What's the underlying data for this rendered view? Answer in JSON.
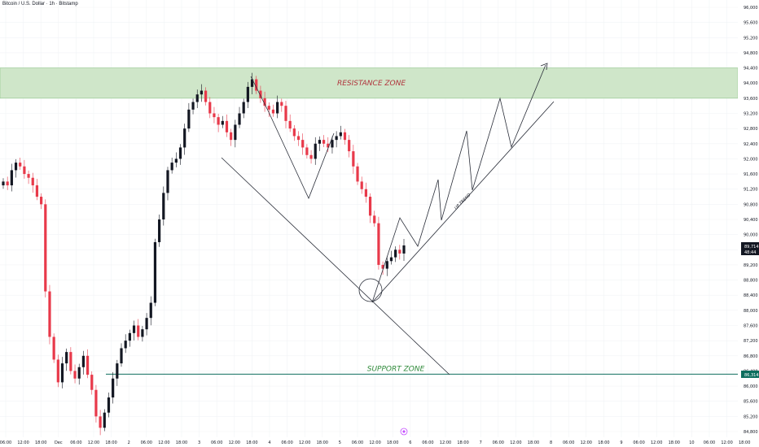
{
  "header": {
    "title": "Bitcoin / U.S. Dollar · 1h · Bitstamp"
  },
  "colors": {
    "up": "#131722",
    "down": "#e8394a",
    "resistance_fill": "#cfe6c9",
    "resistance_stroke": "#8fc48a",
    "resistance_text": "#b0343c",
    "support_line": "#0e6e5e",
    "support_text": "#2f8a3a",
    "grid": "#f1f3f6",
    "lines": "#2a2e39",
    "price_badge": "#131722",
    "support_badge": "#0e6e5e"
  },
  "labels": {
    "resistance": "RESISTANCE ZONE",
    "support": "SUPPORT ZONE",
    "uptrend": "UP TREND"
  },
  "badges": {
    "current_price": "89,714",
    "countdown": "48:44",
    "support_price": "86,314"
  },
  "chart_data": {
    "type": "candlestick",
    "symbol": "Bitcoin / U.S. Dollar",
    "interval": "1h",
    "exchange": "Bitstamp",
    "ylim": [
      84400,
      96000
    ],
    "y_ticks": [
      96000,
      95600,
      95200,
      94800,
      94400,
      94000,
      93600,
      93200,
      92800,
      92400,
      92000,
      91600,
      91200,
      90800,
      90400,
      90000,
      89600,
      89200,
      88800,
      88400,
      88000,
      87600,
      87200,
      86800,
      86400,
      86000,
      85600,
      85200,
      84800
    ],
    "x_labels": [
      "06:00",
      "12:00",
      "18:00",
      "Dec",
      "06:00",
      "12:00",
      "18:00",
      "2",
      "06:00",
      "12:00",
      "18:00",
      "3",
      "06:00",
      "12:00",
      "18:00",
      "4",
      "06:00",
      "12:00",
      "18:00",
      "5",
      "06:00",
      "12:00",
      "18:00",
      "6",
      "06:00",
      "12:00",
      "18:00",
      "7",
      "06:00",
      "12:00",
      "18:00",
      "8",
      "06:00",
      "12:00",
      "18:00",
      "9",
      "06:00",
      "12:00",
      "18:00",
      "10",
      "06:00",
      "12:00",
      "18:00"
    ],
    "resistance_zone": [
      93600,
      94400
    ],
    "support_level": 86314,
    "current_price": 89714,
    "closes": [
      91400,
      91300,
      91700,
      91900,
      91800,
      91600,
      91500,
      91300,
      91000,
      90800,
      88500,
      87300,
      86700,
      86100,
      86600,
      86900,
      86400,
      86200,
      86500,
      86800,
      86300,
      85900,
      85200,
      84900,
      85300,
      85700,
      86200,
      86600,
      87000,
      87200,
      87400,
      87600,
      87300,
      87500,
      87800,
      88200,
      89800,
      90400,
      91100,
      91700,
      91900,
      92000,
      92300,
      92800,
      93300,
      93500,
      93700,
      93800,
      93500,
      93200,
      93100,
      92900,
      93000,
      92700,
      92500,
      92900,
      93200,
      93500,
      93900,
      94100,
      93800,
      93600,
      93400,
      93300,
      93200,
      93500,
      93400,
      93000,
      92800,
      92600,
      92500,
      92300,
      92100,
      92000,
      92400,
      92500,
      92400,
      92300,
      92500,
      92600,
      92700,
      92500,
      92200,
      91800,
      91400,
      91200,
      91000,
      90500,
      90300,
      89200,
      89100,
      89300,
      89400,
      89600,
      89500,
      89714
    ],
    "annotations": [
      "RESISTANCE ZONE",
      "SUPPORT ZONE",
      "UP TREND"
    ]
  }
}
